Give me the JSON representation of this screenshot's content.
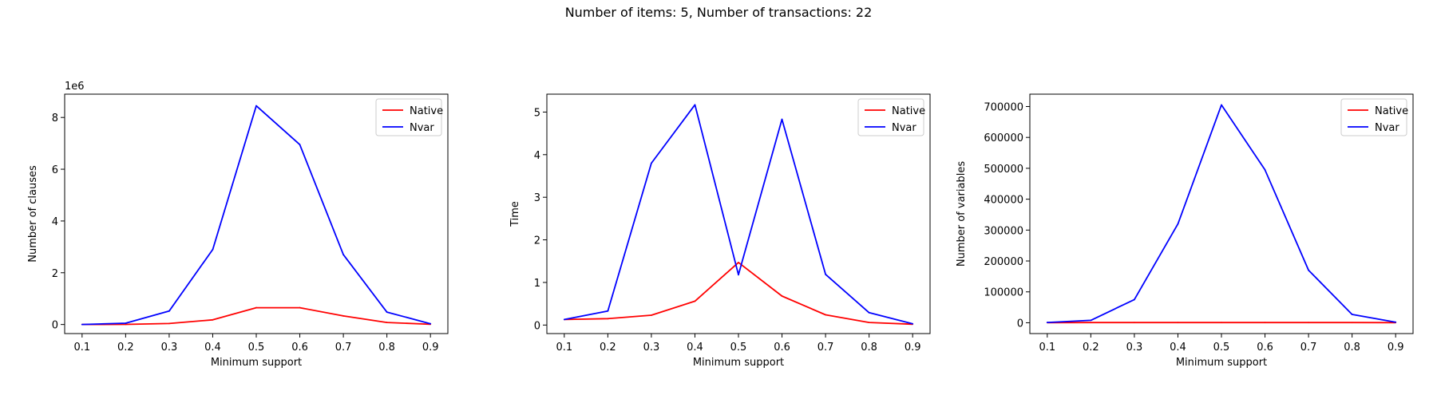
{
  "figure": {
    "suptitle": "Number of items: 5, Number of transactions: 22"
  },
  "chart_data": [
    {
      "type": "line",
      "title": "",
      "xlabel": "Minimum support",
      "ylabel": "Number of clauses",
      "y_offset_label": "1e6",
      "y_scale": 1000000,
      "x": [
        0.1,
        0.2,
        0.3,
        0.4,
        0.5,
        0.6,
        0.7,
        0.8,
        0.9
      ],
      "xticks": [
        "0.1",
        "0.2",
        "0.3",
        "0.4",
        "0.5",
        "0.6",
        "0.7",
        "0.8",
        "0.9"
      ],
      "xlim": [
        0.06,
        0.94
      ],
      "ylim": [
        -350000,
        8900000
      ],
      "yticks": [
        0,
        2000000,
        4000000,
        6000000,
        8000000
      ],
      "ytick_labels": [
        "0",
        "2",
        "4",
        "6",
        "8"
      ],
      "legend": "top-right",
      "grid": false,
      "series": [
        {
          "name": "Native",
          "color": "#ff0000",
          "values": [
            0,
            5000,
            40000,
            180000,
            650000,
            650000,
            330000,
            80000,
            8000
          ]
        },
        {
          "name": "Nvar",
          "color": "#0000ff",
          "values": [
            0,
            50000,
            520000,
            2900000,
            8450000,
            6950000,
            2700000,
            480000,
            30000
          ]
        }
      ]
    },
    {
      "type": "line",
      "title": "",
      "xlabel": "Minimum support",
      "ylabel": "Time",
      "x": [
        0.1,
        0.2,
        0.3,
        0.4,
        0.5,
        0.6,
        0.7,
        0.8,
        0.9
      ],
      "xticks": [
        "0.1",
        "0.2",
        "0.3",
        "0.4",
        "0.5",
        "0.6",
        "0.7",
        "0.8",
        "0.9"
      ],
      "xlim": [
        0.06,
        0.94
      ],
      "ylim": [
        -0.2,
        5.42
      ],
      "yticks": [
        0,
        1,
        2,
        3,
        4,
        5
      ],
      "ytick_labels": [
        "0",
        "1",
        "2",
        "3",
        "4",
        "5"
      ],
      "legend": "top-right",
      "grid": false,
      "series": [
        {
          "name": "Native",
          "color": "#ff0000",
          "values": [
            0.13,
            0.15,
            0.23,
            0.56,
            1.47,
            0.68,
            0.24,
            0.06,
            0.02
          ]
        },
        {
          "name": "Nvar",
          "color": "#0000ff",
          "values": [
            0.13,
            0.33,
            3.8,
            5.17,
            1.18,
            4.83,
            1.19,
            0.29,
            0.03
          ]
        }
      ]
    },
    {
      "type": "line",
      "title": "",
      "xlabel": "Minimum support",
      "ylabel": "Number of variables",
      "x": [
        0.1,
        0.2,
        0.3,
        0.4,
        0.5,
        0.6,
        0.7,
        0.8,
        0.9
      ],
      "xticks": [
        "0.1",
        "0.2",
        "0.3",
        "0.4",
        "0.5",
        "0.6",
        "0.7",
        "0.8",
        "0.9"
      ],
      "xlim": [
        0.06,
        0.94
      ],
      "ylim": [
        -35000,
        740000
      ],
      "yticks": [
        0,
        100000,
        200000,
        300000,
        400000,
        500000,
        600000,
        700000
      ],
      "ytick_labels": [
        "0",
        "100000",
        "200000",
        "300000",
        "400000",
        "500000",
        "600000",
        "700000"
      ],
      "legend": "top-right",
      "grid": false,
      "series": [
        {
          "name": "Native",
          "color": "#ff0000",
          "values": [
            500,
            600,
            700,
            700,
            700,
            700,
            700,
            600,
            500
          ]
        },
        {
          "name": "Nvar",
          "color": "#0000ff",
          "values": [
            1000,
            8000,
            75000,
            320000,
            705000,
            495000,
            170000,
            27000,
            2000
          ]
        }
      ]
    }
  ]
}
